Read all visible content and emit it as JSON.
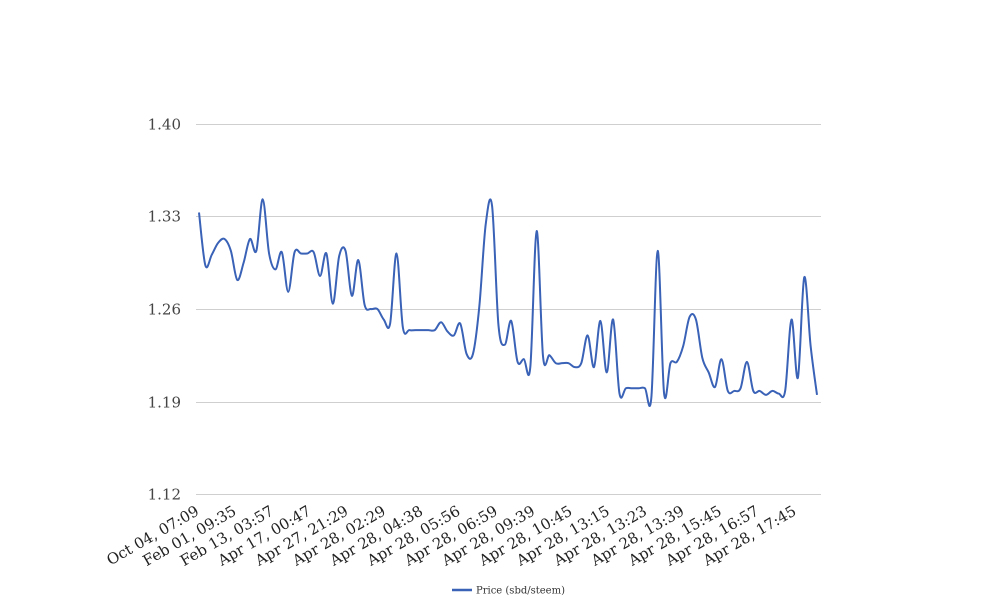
{
  "chart_data": {
    "type": "line",
    "title": "",
    "xlabel": "",
    "ylabel": "",
    "ylim": [
      1.12,
      1.4
    ],
    "yticks": [
      "1.40",
      "1.33",
      "1.26",
      "1.19",
      "1.12"
    ],
    "ytick_values": [
      1.4,
      1.33,
      1.26,
      1.19,
      1.12
    ],
    "grid": true,
    "legend_position": "bottom",
    "xtick_labels": [
      "Oct 04, 07:09",
      "Feb 01, 09:35",
      "Feb 13, 03:57",
      "Apr 17, 00:47",
      "Apr 27, 21:29",
      "Apr 28, 02:29",
      "Apr 28, 04:38",
      "Apr 28, 05:56",
      "Apr 28, 06:59",
      "Apr 28, 09:39",
      "Apr 28, 10:45",
      "Apr 28, 13:15",
      "Apr 28, 13:23",
      "Apr 28, 13:39",
      "Apr 28, 15:45",
      "Apr 28, 16:57",
      "Apr 28, 17:45"
    ],
    "series": [
      {
        "name": "Price (sbd/steem)",
        "color": "#3a62b6",
        "values": [
          1.333,
          1.293,
          1.301,
          1.31,
          1.313,
          1.304,
          1.282,
          1.295,
          1.313,
          1.304,
          1.343,
          1.302,
          1.29,
          1.303,
          1.273,
          1.303,
          1.302,
          1.302,
          1.303,
          1.285,
          1.302,
          1.264,
          1.3,
          1.304,
          1.27,
          1.297,
          1.263,
          1.26,
          1.26,
          1.252,
          1.249,
          1.302,
          1.246,
          1.244,
          1.244,
          1.244,
          1.244,
          1.244,
          1.25,
          1.243,
          1.24,
          1.249,
          1.226,
          1.226,
          1.262,
          1.324,
          1.338,
          1.248,
          1.233,
          1.251,
          1.22,
          1.222,
          1.216,
          1.319,
          1.224,
          1.225,
          1.219,
          1.219,
          1.219,
          1.216,
          1.219,
          1.24,
          1.216,
          1.251,
          1.212,
          1.252,
          1.196,
          1.2,
          1.2,
          1.2,
          1.2,
          1.193,
          1.304,
          1.196,
          1.219,
          1.22,
          1.232,
          1.254,
          1.252,
          1.223,
          1.212,
          1.201,
          1.222,
          1.198,
          1.198,
          1.2,
          1.22,
          1.198,
          1.198,
          1.195,
          1.198,
          1.196,
          1.198,
          1.252,
          1.208,
          1.284,
          1.232,
          1.195
        ]
      }
    ]
  }
}
